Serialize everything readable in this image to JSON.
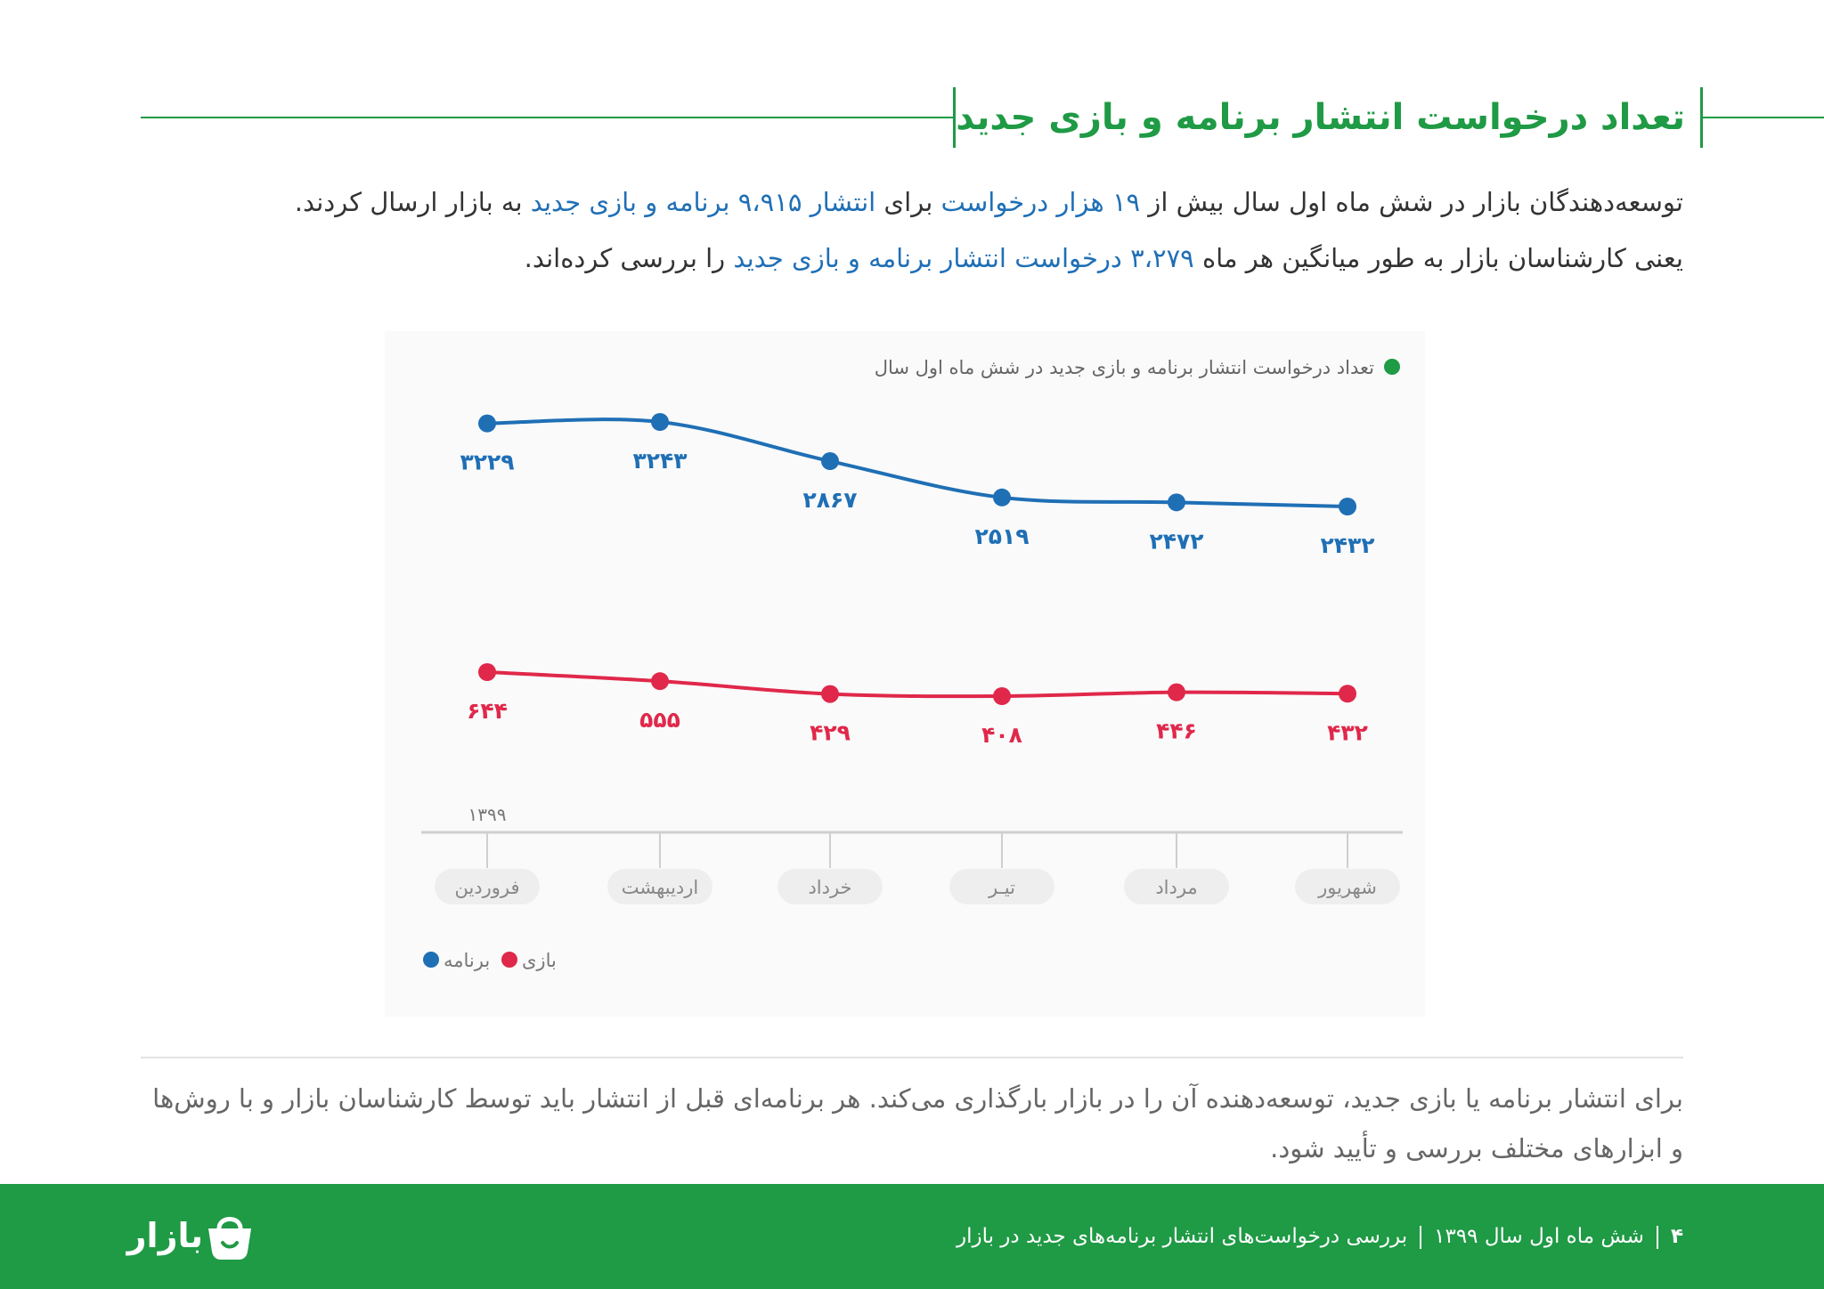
{
  "header": {
    "title": "تعداد درخواست انتشار برنامه و بازی جدید"
  },
  "intro": {
    "line1": [
      {
        "text": "توسعه‌دهندگان بازار در شش ماه اول سال بیش از ",
        "highlight": false
      },
      {
        "text": "۱۹ هزار درخواست",
        "highlight": true
      },
      {
        "text": " برای ",
        "highlight": false
      },
      {
        "text": "انتشار ۹،۹۱۵ برنامه و بازی جدید",
        "highlight": true
      },
      {
        "text": " به بازار ارسال کردند.",
        "highlight": false
      }
    ],
    "line2": [
      {
        "text": "یعنی کارشناسان بازار به طور میانگین هر ماه ",
        "highlight": false
      },
      {
        "text": "۳،۲۷۹ درخواست انتشار برنامه و بازی جدید",
        "highlight": true
      },
      {
        "text": " را بررسی کرده‌اند.",
        "highlight": false
      }
    ]
  },
  "chart_data": {
    "type": "line",
    "title": "تعداد درخواست انتشار برنامه و بازی جدید در شش ماه اول سال",
    "year_label": "۱۳۹۹",
    "categories": [
      "فروردین",
      "اردیبهشت",
      "خرداد",
      "تیـر",
      "مرداد",
      "شهریور"
    ],
    "series": [
      {
        "name": "برنامه",
        "color": "#1f6fb5",
        "values": [
          3229,
          3243,
          2867,
          2519,
          2472,
          2432
        ],
        "labels": [
          "۳۲۲۹",
          "۳۲۴۳",
          "۲۸۶۷",
          "۲۵۱۹",
          "۲۴۷۲",
          "۲۴۳۲"
        ]
      },
      {
        "name": "بازی",
        "color": "#e0284a",
        "values": [
          644,
          555,
          429,
          408,
          446,
          432
        ],
        "labels": [
          "۶۴۴",
          "۵۵۵",
          "۴۲۹",
          "۴۰۸",
          "۴۴۶",
          "۴۳۲"
        ]
      }
    ],
    "legend_position": "bottom-left",
    "grid": false,
    "title_dot_color": "#1f9a45"
  },
  "footnote": {
    "line1": "برای انتشار برنامه یا بازی جدید، توسعه‌دهنده آن را در بازار بارگذاری می‌کند. هر برنامه‌ای قبل از انتشار باید توسط کارشناسان بازار و با روش‌ها",
    "line2": "و ابزارهای مختلف بررسی و تأیید شود."
  },
  "footer": {
    "page_number": "۴",
    "period": "شش ماه اول سال ۱۳۹۹",
    "report_title": "بررسی درخواست‌های انتشار برنامه‌های جدید در بازار",
    "logo_text": "بازار",
    "logo_icon": "shopping-bag-icon"
  },
  "colors": {
    "brand_green": "#1f9a45",
    "accent_blue": "#1f6fb5",
    "accent_red": "#e0284a"
  }
}
